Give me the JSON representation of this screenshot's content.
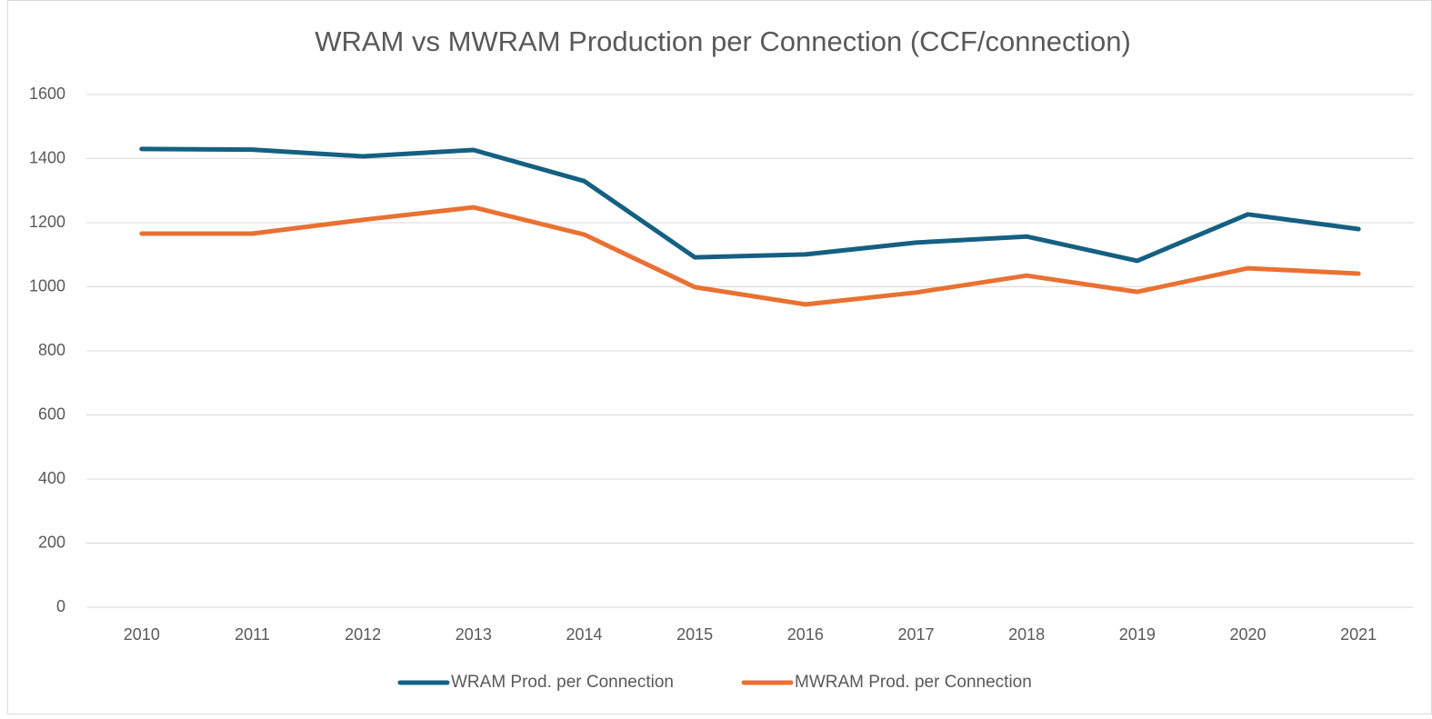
{
  "chart_data": {
    "type": "line",
    "title": "WRAM vs MWRAM Production per Connection (CCF/connection)",
    "categories": [
      "2010",
      "2011",
      "2012",
      "2013",
      "2014",
      "2015",
      "2016",
      "2017",
      "2018",
      "2019",
      "2020",
      "2021"
    ],
    "series": [
      {
        "name": "WRAM Prod. per Connection",
        "color": "#156082",
        "values": [
          1430,
          1428,
          1407,
          1427,
          1330,
          1092,
          1101,
          1138,
          1157,
          1081,
          1226,
          1180
        ]
      },
      {
        "name": "MWRAM Prod. per Connection",
        "color": "#e97132",
        "values": [
          1166,
          1166,
          1209,
          1248,
          1163,
          999,
          945,
          982,
          1035,
          984,
          1058,
          1041
        ]
      }
    ],
    "ylim": [
      0,
      1600
    ],
    "yticks": [
      0,
      200,
      400,
      600,
      800,
      1000,
      1200,
      1400,
      1600
    ],
    "grid": true,
    "legend": "bottom"
  }
}
